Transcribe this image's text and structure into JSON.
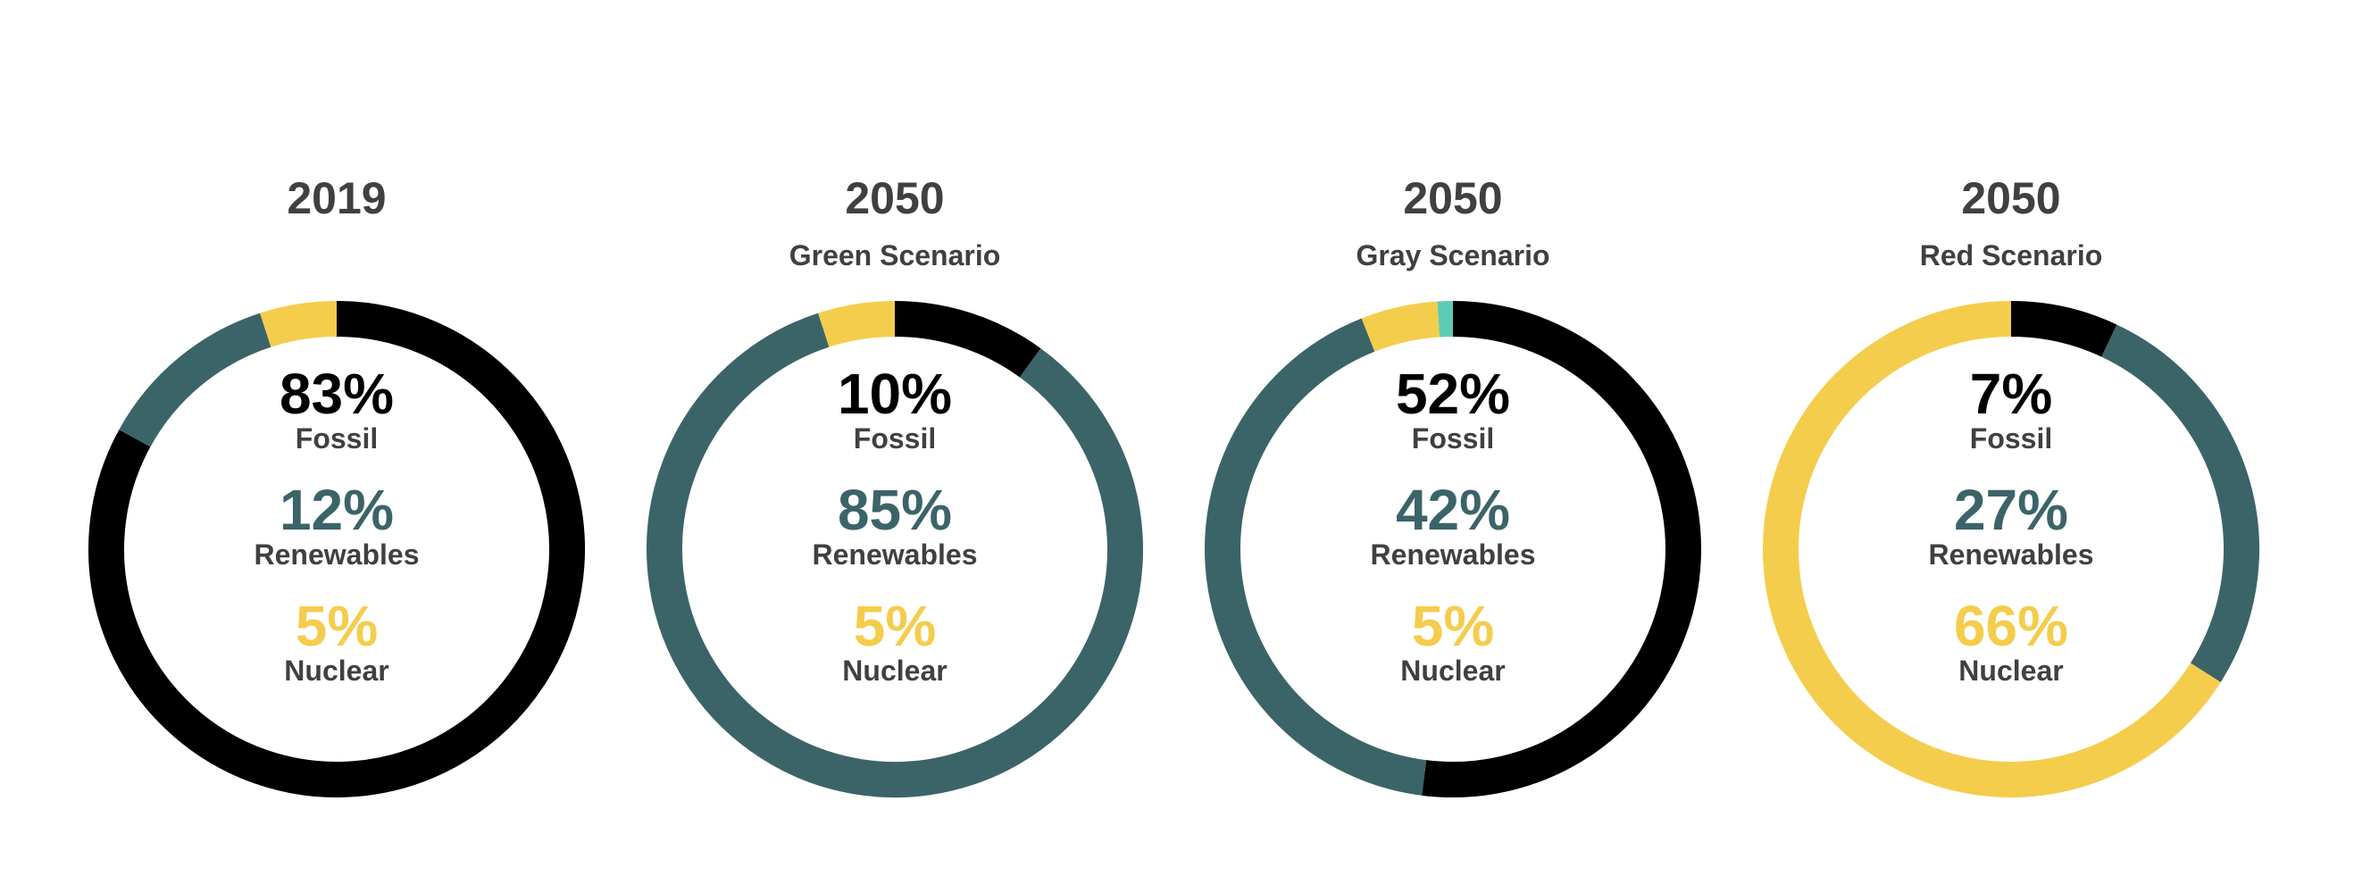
{
  "colors": {
    "fossil": "#000000",
    "renewables": "#3B6469",
    "nuclear": "#F5CD4C",
    "other": "#5ECCB5",
    "text": "#404040"
  },
  "labels": {
    "fossil": "Fossil",
    "renewables": "Renewables",
    "nuclear": "Nuclear"
  },
  "chart_data": [
    {
      "type": "pie",
      "title": "2019",
      "subtitle": "",
      "categories": [
        "Fossil",
        "Renewables",
        "Nuclear"
      ],
      "values": [
        83,
        12,
        5
      ],
      "value_labels": [
        "83%",
        "12%",
        "5%"
      ]
    },
    {
      "type": "pie",
      "title": "2050",
      "subtitle": "Green Scenario",
      "categories": [
        "Fossil",
        "Renewables",
        "Nuclear"
      ],
      "values": [
        10,
        85,
        5
      ],
      "value_labels": [
        "10%",
        "85%",
        "5%"
      ]
    },
    {
      "type": "pie",
      "title": "2050",
      "subtitle": "Gray Scenario",
      "categories": [
        "Fossil",
        "Renewables",
        "Nuclear"
      ],
      "values": [
        52,
        42,
        5
      ],
      "value_labels": [
        "52%",
        "42%",
        "5%"
      ]
    },
    {
      "type": "pie",
      "title": "2050",
      "subtitle": "Red Scenario",
      "categories": [
        "Fossil",
        "Renewables",
        "Nuclear"
      ],
      "values": [
        7,
        27,
        66
      ],
      "value_labels": [
        "7%",
        "27%",
        "66%"
      ]
    }
  ]
}
